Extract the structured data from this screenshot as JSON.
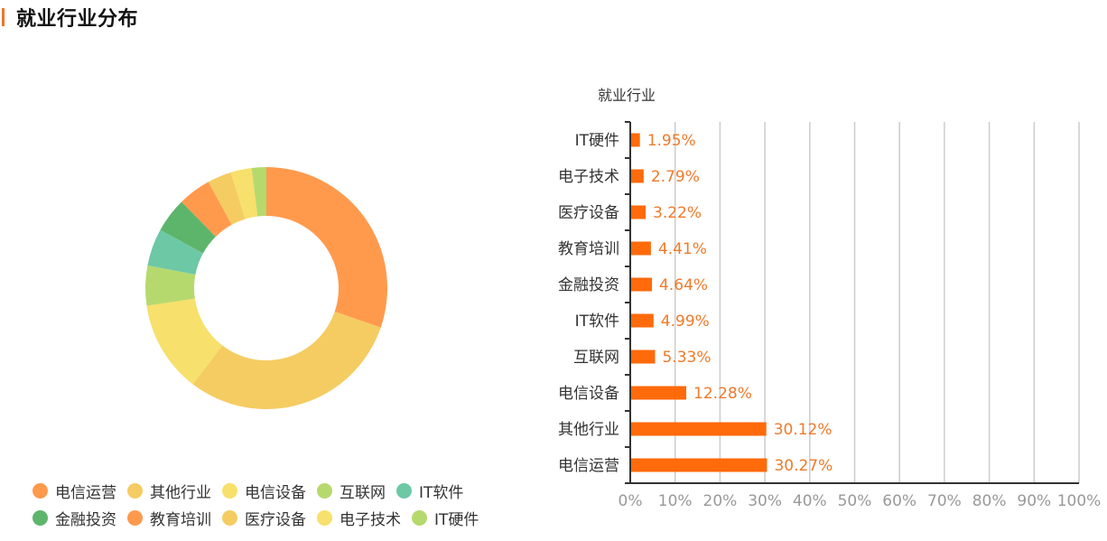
{
  "header": {
    "title": "就业行业分布",
    "accent_color": "#E8782A"
  },
  "chart_data": [
    {
      "type": "pie",
      "subtype": "donut",
      "title": "",
      "categories": [
        "电信运营",
        "其他行业",
        "电信设备",
        "互联网",
        "IT软件",
        "金融投资",
        "教育培训",
        "医疗设备",
        "电子技术",
        "IT硬件"
      ],
      "values": [
        30.27,
        30.12,
        12.28,
        5.33,
        4.99,
        4.64,
        4.41,
        3.22,
        2.79,
        1.95
      ],
      "colors": [
        "#FF9A4D",
        "#F5CC62",
        "#F7E06B",
        "#B6D96E",
        "#6DC8A5",
        "#5DB56B",
        "#FF9A4D",
        "#F5CC62",
        "#F7E06B",
        "#B6D96E"
      ],
      "legend_position": "bottom"
    },
    {
      "type": "bar",
      "orientation": "horizontal",
      "title": "就业行业",
      "categories": [
        "IT硬件",
        "电子技术",
        "医疗设备",
        "教育培训",
        "金融投资",
        "IT软件",
        "互联网",
        "电信设备",
        "其他行业",
        "电信运营"
      ],
      "values": [
        1.95,
        2.79,
        3.22,
        4.41,
        4.64,
        4.99,
        5.33,
        12.28,
        30.12,
        30.27
      ],
      "value_labels": [
        "1.95%",
        "2.79%",
        "3.22%",
        "4.41%",
        "4.64%",
        "4.99%",
        "5.33%",
        "12.28%",
        "30.12%",
        "30.27%"
      ],
      "xlabel": "",
      "ylabel": "就业行业",
      "xlim": [
        0,
        100
      ],
      "xticks": [
        "0%",
        "10%",
        "20%",
        "30%",
        "40%",
        "50%",
        "60%",
        "70%",
        "80%",
        "90%",
        "100%"
      ],
      "grid": "vertical",
      "bar_color": "#FF6A0A",
      "label_color": "#F07A2A"
    }
  ],
  "legend": {
    "rows": [
      [
        {
          "label": "电信运营",
          "color": "#FF9A4D"
        },
        {
          "label": "其他行业",
          "color": "#F5CC62"
        },
        {
          "label": "电信设备",
          "color": "#F7E06B"
        },
        {
          "label": "互联网",
          "color": "#B6D96E"
        },
        {
          "label": "IT软件",
          "color": "#6DC8A5"
        }
      ],
      [
        {
          "label": "金融投资",
          "color": "#5DB56B"
        },
        {
          "label": "教育培训",
          "color": "#FF9A4D"
        },
        {
          "label": "医疗设备",
          "color": "#F5CC62"
        },
        {
          "label": "电子技术",
          "color": "#F7E06B"
        },
        {
          "label": "IT硬件",
          "color": "#B6D96E"
        }
      ]
    ]
  }
}
